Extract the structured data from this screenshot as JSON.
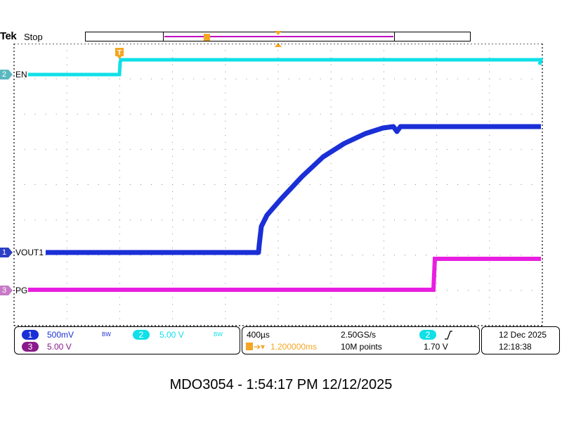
{
  "header": {
    "brand": "Tek",
    "acquisition_state": "Stop",
    "trigger_marker": "T"
  },
  "channels": {
    "ch1": {
      "number": "1",
      "label": "VOUT1",
      "scale": "500mV",
      "bw_indicator": "BW",
      "color": "#1a2fd6"
    },
    "ch2": {
      "number": "2",
      "label": "EN",
      "scale": "5.00 V",
      "bw_indicator": "BW",
      "color": "#10e0e8"
    },
    "ch3": {
      "number": "3",
      "label": "PG",
      "scale": "5.00 V",
      "color": "#e81ee0"
    }
  },
  "timebase": {
    "time_per_div": "400µs",
    "sample_rate": "2.50GS/s",
    "trigger_position": "1.200000ms",
    "record_length": "10M points"
  },
  "trigger": {
    "source": "2",
    "slope_icon": "rising-edge",
    "level": "1.70 V",
    "color": "#f5a623"
  },
  "datetime": {
    "date": "12 Dec  2025",
    "time": "12:18:38"
  },
  "caption": "MDO3054 - 1:54:17 PM    12/12/2025"
}
